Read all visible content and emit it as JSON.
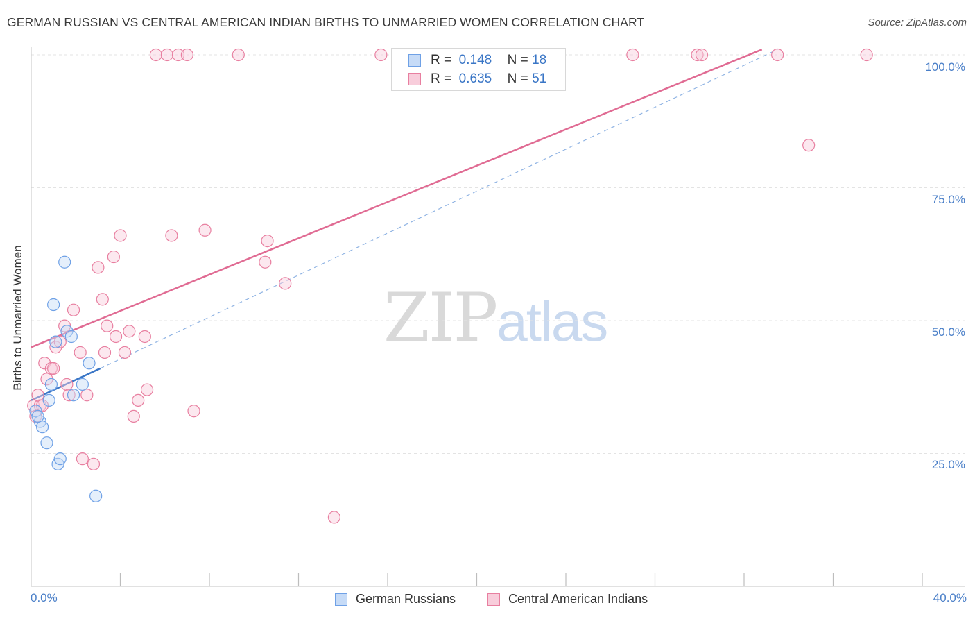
{
  "title": "GERMAN RUSSIAN VS CENTRAL AMERICAN INDIAN BIRTHS TO UNMARRIED WOMEN CORRELATION CHART",
  "source": "Source: ZipAtlas.com",
  "watermark": {
    "zip": "ZIP",
    "atlas": "atlas"
  },
  "legend": {
    "rows": [
      {
        "r_label": "R =",
        "r_value": "0.148",
        "n_label": "N =",
        "n_value": "18"
      },
      {
        "r_label": "R =",
        "r_value": "0.635",
        "n_label": "N =",
        "n_value": "51"
      }
    ]
  },
  "chart_data": {
    "type": "scatter",
    "title": "GERMAN RUSSIAN VS CENTRAL AMERICAN INDIAN BIRTHS TO UNMARRIED WOMEN CORRELATION CHART",
    "xlabel": "",
    "ylabel": "Births to Unmarried Women",
    "xlim": [
      0,
      40
    ],
    "ylim": [
      0,
      102
    ],
    "x_tick_labels": [
      "0.0%",
      "40.0%"
    ],
    "y_tick_labels": [
      "25.0%",
      "50.0%",
      "75.0%",
      "100.0%"
    ],
    "y_tick_values": [
      25,
      50,
      75,
      100
    ],
    "colors": {
      "german_russians": "#6fa1e6",
      "central_american_indians": "#e87fa0",
      "blue_line": "#3a76c6",
      "pink_line": "#e06b93"
    },
    "series": [
      {
        "name": "German Russians",
        "color": "#6fa1e6",
        "x": [
          0.2,
          0.4,
          0.5,
          0.3,
          0.7,
          0.8,
          0.9,
          1.0,
          1.1,
          1.2,
          1.3,
          1.5,
          1.6,
          1.8,
          1.9,
          2.3,
          2.6,
          2.9
        ],
        "y": [
          33,
          31,
          30,
          32,
          27,
          35,
          38,
          53,
          46,
          23,
          24,
          61,
          48,
          47,
          36,
          38,
          42,
          17
        ],
        "trend": {
          "x": [
            0,
            3.1
          ],
          "y": [
            35,
            41
          ]
        },
        "dashed_extension": {
          "x": [
            3.1,
            33.5
          ],
          "y": [
            41,
            101
          ]
        }
      },
      {
        "name": "Central American Indians",
        "color": "#e87fa0",
        "x": [
          0.1,
          0.2,
          0.3,
          0.4,
          0.5,
          0.6,
          0.7,
          0.9,
          1.0,
          1.1,
          1.3,
          1.5,
          1.6,
          1.7,
          1.9,
          2.2,
          2.3,
          2.5,
          2.8,
          3.0,
          3.2,
          3.3,
          3.4,
          3.7,
          3.8,
          4.0,
          4.2,
          4.4,
          4.6,
          4.8,
          5.1,
          5.2,
          5.6,
          6.1,
          6.3,
          6.6,
          7.0,
          7.3,
          7.8,
          9.3,
          10.5,
          10.6,
          11.4,
          13.6,
          15.7,
          27.0,
          29.9,
          30.1,
          33.5,
          34.9,
          37.5
        ],
        "y": [
          34,
          32,
          36,
          34,
          34,
          42,
          39,
          41,
          41,
          45,
          46,
          49,
          38,
          36,
          52,
          44,
          24,
          36,
          23,
          60,
          54,
          44,
          49,
          62,
          47,
          66,
          44,
          48,
          32,
          35,
          47,
          37,
          100,
          100,
          66,
          100,
          100,
          33,
          67,
          100,
          61,
          65,
          57,
          13,
          100,
          100,
          100,
          100,
          100,
          83,
          100
        ],
        "trend": {
          "x": [
            0,
            32.8
          ],
          "y": [
            45,
            101
          ]
        }
      }
    ]
  },
  "bottom_legend": [
    {
      "label": "German Russians"
    },
    {
      "label": "Central American Indians"
    }
  ]
}
